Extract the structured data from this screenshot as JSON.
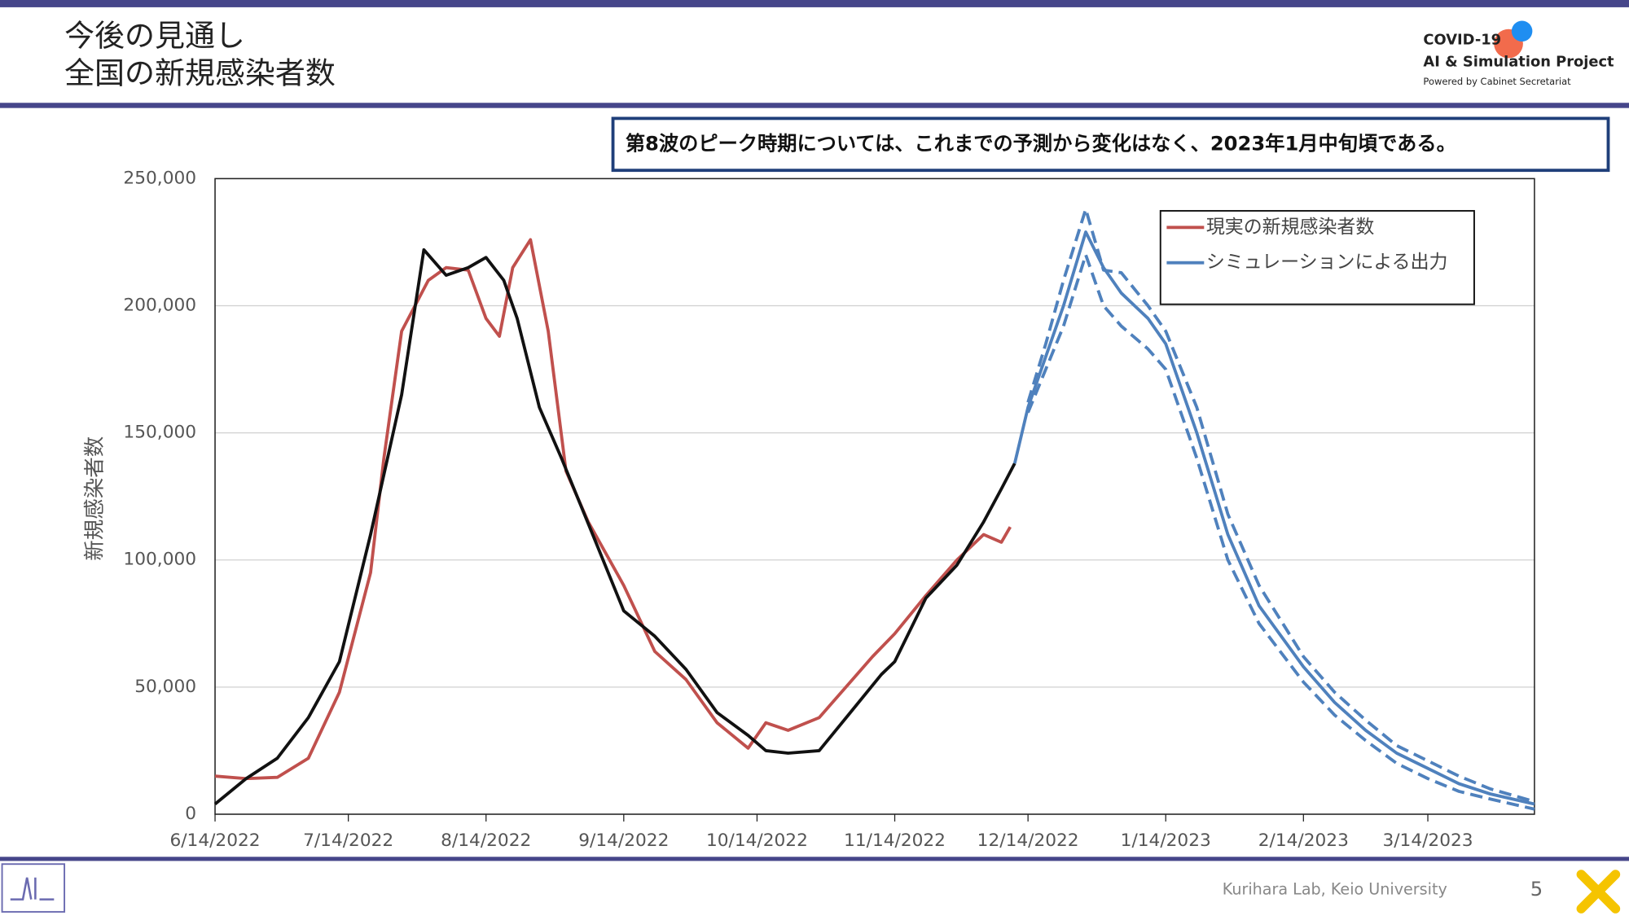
{
  "header": {
    "title_lines": [
      "今後の見通し",
      "全国の新規感染者数"
    ],
    "logo": {
      "line1": "COVID-19",
      "line2": "AI & Simulation Project",
      "line3": "Powered by Cabinet Secretariat"
    }
  },
  "footer": {
    "credit": "Kurihara Lab, Keio University",
    "page": "5"
  },
  "chart_data": {
    "type": "line",
    "annotation": "第8波のピーク時期については、これまでの予測から変化はなく、2023年1月中旬頃である。",
    "ylabel": "新規感染者数",
    "xlim": [
      "2022-06-14",
      "2023-04-07"
    ],
    "xticks": [
      {
        "value": "2022-06-14",
        "label": "6/14/2022"
      },
      {
        "value": "2022-07-14",
        "label": "7/14/2022"
      },
      {
        "value": "2022-08-14",
        "label": "8/14/2022"
      },
      {
        "value": "2022-09-14",
        "label": "9/14/2022"
      },
      {
        "value": "2022-10-14",
        "label": "10/14/2022"
      },
      {
        "value": "2022-11-14",
        "label": "11/14/2022"
      },
      {
        "value": "2022-12-14",
        "label": "12/14/2022"
      },
      {
        "value": "2023-01-14",
        "label": "1/14/2023"
      },
      {
        "value": "2023-02-14",
        "label": "2/14/2023"
      },
      {
        "value": "2023-03-14",
        "label": "3/14/2023"
      }
    ],
    "ylim": [
      0,
      250000
    ],
    "yticks": [
      0,
      {
        "value": 50000,
        "label": "50,000"
      },
      {
        "value": 100000,
        "label": "100,000"
      },
      {
        "value": 150000,
        "label": "150,000"
      },
      {
        "value": 200000,
        "label": "200,000"
      },
      {
        "value": 250000,
        "label": "250,000"
      }
    ],
    "grid": true,
    "legend": "upper right",
    "series": [
      {
        "name": "現実の新規感染者数",
        "color": "#c0504d",
        "style": "solid",
        "x": [
          "2022-06-14",
          "2022-06-21",
          "2022-06-28",
          "2022-07-05",
          "2022-07-12",
          "2022-07-19",
          "2022-07-22",
          "2022-07-26",
          "2022-08-01",
          "2022-08-05",
          "2022-08-10",
          "2022-08-14",
          "2022-08-17",
          "2022-08-20",
          "2022-08-24",
          "2022-08-28",
          "2022-09-01",
          "2022-09-06",
          "2022-09-14",
          "2022-09-21",
          "2022-09-28",
          "2022-10-05",
          "2022-10-12",
          "2022-10-16",
          "2022-10-21",
          "2022-10-28",
          "2022-11-04",
          "2022-11-09",
          "2022-11-14",
          "2022-11-21",
          "2022-11-28",
          "2022-12-04",
          "2022-12-08",
          "2022-12-10"
        ],
        "values": [
          15000,
          14000,
          14500,
          22000,
          48000,
          95000,
          140000,
          190000,
          210000,
          215000,
          214000,
          195000,
          188000,
          215000,
          226000,
          190000,
          135000,
          115000,
          90000,
          64000,
          53000,
          36000,
          26000,
          36000,
          33000,
          38000,
          52000,
          62000,
          71000,
          86000,
          100000,
          110000,
          107000,
          113000
        ]
      },
      {
        "color": "#111111",
        "style": "solid",
        "x": [
          "2022-06-14",
          "2022-06-21",
          "2022-06-28",
          "2022-07-05",
          "2022-07-12",
          "2022-07-19",
          "2022-07-26",
          "2022-07-31",
          "2022-08-05",
          "2022-08-10",
          "2022-08-14",
          "2022-08-18",
          "2022-08-21",
          "2022-08-26",
          "2022-08-31",
          "2022-09-07",
          "2022-09-14",
          "2022-09-21",
          "2022-09-28",
          "2022-10-05",
          "2022-10-12",
          "2022-10-16",
          "2022-10-21",
          "2022-10-28",
          "2022-11-04",
          "2022-11-11",
          "2022-11-14",
          "2022-11-21",
          "2022-11-28",
          "2022-12-04",
          "2022-12-08",
          "2022-12-11"
        ],
        "values": [
          4000,
          14000,
          22000,
          38000,
          60000,
          110000,
          165000,
          222000,
          212000,
          215000,
          219000,
          210000,
          195000,
          160000,
          140000,
          110000,
          80000,
          70000,
          57000,
          40000,
          31000,
          25000,
          24000,
          25000,
          40000,
          55000,
          60000,
          85000,
          98000,
          115000,
          128000,
          138000
        ]
      },
      {
        "name": "シミュレーションによる出力",
        "color": "#4f81bd",
        "style": "solid",
        "x": [
          "2022-12-11",
          "2022-12-14",
          "2022-12-18",
          "2022-12-22",
          "2022-12-27",
          "2022-12-31",
          "2023-01-04",
          "2023-01-10",
          "2023-01-14",
          "2023-01-21",
          "2023-01-28",
          "2023-02-04",
          "2023-02-14",
          "2023-02-21",
          "2023-02-28",
          "2023-03-07",
          "2023-03-14",
          "2023-03-21",
          "2023-03-28",
          "2023-04-07"
        ],
        "values": [
          138000,
          160000,
          180000,
          200000,
          229000,
          215000,
          205000,
          195000,
          185000,
          150000,
          110000,
          82000,
          58000,
          44000,
          33000,
          24000,
          18000,
          12000,
          8000,
          4000
        ]
      },
      {
        "color": "#4f81bd",
        "style": "dashed",
        "x": [
          "2022-12-14",
          "2022-12-18",
          "2022-12-22",
          "2022-12-27",
          "2022-12-31",
          "2023-01-04",
          "2023-01-10",
          "2023-01-14",
          "2023-01-21",
          "2023-01-28",
          "2023-02-04",
          "2023-02-14",
          "2023-02-21",
          "2023-02-28",
          "2023-03-07",
          "2023-03-14",
          "2023-03-21",
          "2023-03-28",
          "2023-04-07"
        ],
        "values": [
          162000,
          185000,
          210000,
          238000,
          214000,
          213000,
          200000,
          190000,
          160000,
          118000,
          90000,
          62000,
          48000,
          37000,
          27000,
          21000,
          15000,
          10000,
          5000
        ]
      },
      {
        "color": "#4f81bd",
        "style": "dashed",
        "x": [
          "2022-12-14",
          "2022-12-18",
          "2022-12-22",
          "2022-12-27",
          "2022-12-31",
          "2023-01-04",
          "2023-01-10",
          "2023-01-14",
          "2023-01-21",
          "2023-01-28",
          "2023-02-04",
          "2023-02-14",
          "2023-02-21",
          "2023-02-28",
          "2023-03-07",
          "2023-03-14",
          "2023-03-21",
          "2023-03-28",
          "2023-04-07"
        ],
        "values": [
          158000,
          175000,
          192000,
          220000,
          200000,
          192000,
          183000,
          175000,
          140000,
          100000,
          75000,
          52000,
          39000,
          29000,
          20000,
          14000,
          9000,
          6000,
          2000
        ]
      }
    ]
  }
}
